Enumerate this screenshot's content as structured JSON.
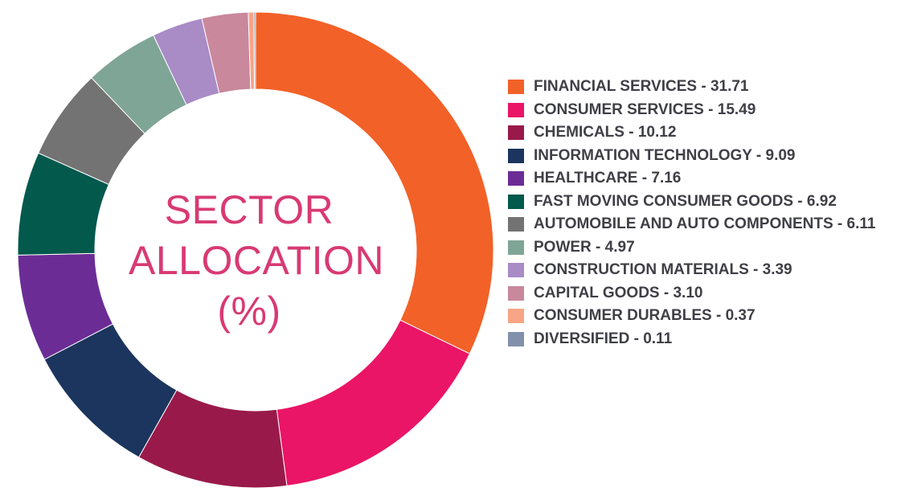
{
  "chart_data": {
    "type": "pie",
    "title_lines": [
      "SECTOR",
      "ALLOCATION",
      "(%)"
    ],
    "series": [
      {
        "label": "FINANCIAL SERVICES",
        "value": 31.71,
        "value_text": "31.71",
        "color": "#f26128"
      },
      {
        "label": "CONSUMER SERVICES",
        "value": 15.49,
        "value_text": "15.49",
        "color": "#ea1566"
      },
      {
        "label": "CHEMICALS",
        "value": 10.12,
        "value_text": "10.12",
        "color": "#991a4a"
      },
      {
        "label": "INFORMATION TECHNOLOGY",
        "value": 9.09,
        "value_text": "9.09",
        "color": "#1c355e"
      },
      {
        "label": "HEALTHCARE",
        "value": 7.16,
        "value_text": "7.16",
        "color": "#6b2d95"
      },
      {
        "label": "FAST MOVING CONSUMER GOODS",
        "value": 6.92,
        "value_text": "6.92",
        "color": "#02594c"
      },
      {
        "label": "AUTOMOBILE AND AUTO COMPONENTS",
        "value": 6.11,
        "value_text": "6.11",
        "color": "#737373"
      },
      {
        "label": "POWER",
        "value": 4.97,
        "value_text": "4.97",
        "color": "#7fa597"
      },
      {
        "label": "CONSTRUCTION MATERIALS",
        "value": 3.39,
        "value_text": "3.39",
        "color": "#a98bc6"
      },
      {
        "label": "CAPITAL GOODS",
        "value": 3.1,
        "value_text": "3.10",
        "color": "#c9889c"
      },
      {
        "label": "CONSUMER DURABLES",
        "value": 0.37,
        "value_text": "0.37",
        "color": "#f7a586"
      },
      {
        "label": "DIVERSIFIED",
        "value": 0.11,
        "value_text": "0.11",
        "color": "#8191ab"
      }
    ],
    "donut": true,
    "start_angle_deg": 0,
    "direction": "clockwise",
    "legend_position": "right"
  }
}
